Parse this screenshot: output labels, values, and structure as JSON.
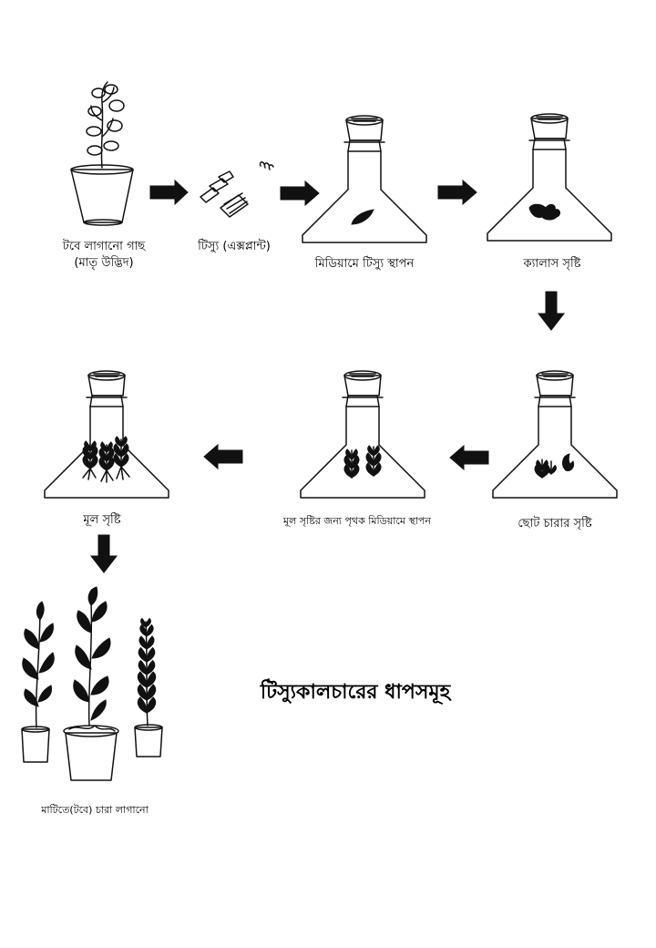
{
  "title": "টিস্যুকালচারের ধাপসমূহ",
  "steps": {
    "mother_plant": {
      "line1": "টবে লাগানো গাছ",
      "line2": "(মাতৃ উদ্ভিদ)"
    },
    "explant": "টিস্যু (এক্সপ্লান্ট)",
    "media_placement": "মিডিয়ামে টিস্যু স্থাপন",
    "callus": "ক্যালাস সৃষ্টি",
    "plantlet": "ছোট চারার সৃষ্টি",
    "root_media": "মূল সৃষ্টির জন্য পৃথক মিডিয়ামে স্থাপন",
    "root": "মূল সৃষ্টি",
    "planting": "মাটিতে(টবে) চারা লাগানো"
  },
  "colors": {
    "ink": "#111111",
    "background": "#ffffff"
  }
}
